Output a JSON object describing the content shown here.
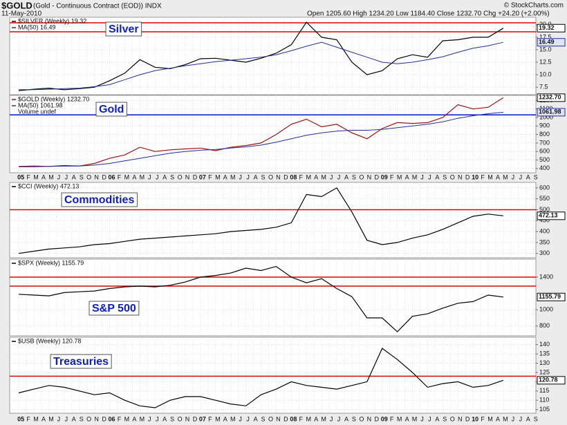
{
  "header": {
    "symbol": "$GOLD",
    "name": "(Gold - Continuous Contract (EOD)) INDX",
    "date": "11-May-2010",
    "quote": "Open 1205.60 High 1234.20 Low 1184.40 Close 1232.70 Chg +24.20 (+2.00%)",
    "credit": "© StockCharts.com"
  },
  "x_axis": {
    "xlim": [
      -1.2,
      68.3
    ],
    "xticks": [
      {
        "value": 0,
        "label": "05"
      },
      {
        "value": 1,
        "label": "F"
      },
      {
        "value": 2,
        "label": "M"
      },
      {
        "value": 3,
        "label": "A"
      },
      {
        "value": 4,
        "label": "M"
      },
      {
        "value": 5,
        "label": "J"
      },
      {
        "value": 6,
        "label": "J"
      },
      {
        "value": 7,
        "label": "A"
      },
      {
        "value": 8,
        "label": "S"
      },
      {
        "value": 9,
        "label": "O"
      },
      {
        "value": 10,
        "label": "N"
      },
      {
        "value": 11,
        "label": "D"
      },
      {
        "value": 12,
        "label": "06"
      },
      {
        "value": 13,
        "label": "F"
      },
      {
        "value": 14,
        "label": "M"
      },
      {
        "value": 15,
        "label": "A"
      },
      {
        "value": 16,
        "label": "M"
      },
      {
        "value": 17,
        "label": "J"
      },
      {
        "value": 18,
        "label": "J"
      },
      {
        "value": 19,
        "label": "A"
      },
      {
        "value": 20,
        "label": "S"
      },
      {
        "value": 21,
        "label": "O"
      },
      {
        "value": 22,
        "label": "N"
      },
      {
        "value": 23,
        "label": "D"
      },
      {
        "value": 24,
        "label": "07"
      },
      {
        "value": 25,
        "label": "F"
      },
      {
        "value": 26,
        "label": "M"
      },
      {
        "value": 27,
        "label": "A"
      },
      {
        "value": 28,
        "label": "M"
      },
      {
        "value": 29,
        "label": "J"
      },
      {
        "value": 30,
        "label": "J"
      },
      {
        "value": 31,
        "label": "A"
      },
      {
        "value": 32,
        "label": "S"
      },
      {
        "value": 33,
        "label": "O"
      },
      {
        "value": 34,
        "label": "N"
      },
      {
        "value": 35,
        "label": "D"
      },
      {
        "value": 36,
        "label": "08"
      },
      {
        "value": 37,
        "label": "F"
      },
      {
        "value": 38,
        "label": "M"
      },
      {
        "value": 39,
        "label": "A"
      },
      {
        "value": 40,
        "label": "M"
      },
      {
        "value": 41,
        "label": "J"
      },
      {
        "value": 42,
        "label": "J"
      },
      {
        "value": 43,
        "label": "A"
      },
      {
        "value": 44,
        "label": "S"
      },
      {
        "value": 45,
        "label": "O"
      },
      {
        "value": 46,
        "label": "N"
      },
      {
        "value": 47,
        "label": "D"
      },
      {
        "value": 48,
        "label": "09"
      },
      {
        "value": 49,
        "label": "F"
      },
      {
        "value": 50,
        "label": "M"
      },
      {
        "value": 51,
        "label": "A"
      },
      {
        "value": 52,
        "label": "M"
      },
      {
        "value": 53,
        "label": "J"
      },
      {
        "value": 54,
        "label": "J"
      },
      {
        "value": 55,
        "label": "A"
      },
      {
        "value": 56,
        "label": "S"
      },
      {
        "value": 57,
        "label": "O"
      },
      {
        "value": 58,
        "label": "N"
      },
      {
        "value": 59,
        "label": "D"
      },
      {
        "value": 60,
        "label": "10"
      },
      {
        "value": 61,
        "label": "F"
      },
      {
        "value": 62,
        "label": "M"
      },
      {
        "value": 63,
        "label": "A"
      },
      {
        "value": 64,
        "label": "M"
      },
      {
        "value": 65,
        "label": "J"
      },
      {
        "value": 66,
        "label": "J"
      },
      {
        "value": 67,
        "label": "A"
      },
      {
        "value": 68,
        "label": "S"
      }
    ]
  },
  "chart_data": [
    {
      "type": "line",
      "title": "Silver",
      "ylim": [
        6,
        21.5
      ],
      "yticks": [
        7.5,
        {
          "value": 10,
          "label": "10.0"
        },
        12.5,
        {
          "value": 15,
          "label": "15.0"
        },
        17.5,
        {
          "value": 20,
          "label": "20.0"
        }
      ],
      "x": [
        0,
        2,
        4,
        6,
        8,
        10,
        12,
        14,
        16,
        18,
        20,
        22,
        24,
        26,
        28,
        30,
        32,
        34,
        36,
        38,
        40,
        42,
        44,
        46,
        48,
        50,
        52,
        54,
        56,
        58,
        60,
        62,
        64
      ],
      "series": [
        {
          "name": "$SILVER (Weekly) 19.32",
          "color": "#000000",
          "values": [
            6.8,
            7.1,
            7.3,
            7.0,
            7.2,
            7.5,
            8.8,
            10.3,
            13.0,
            11.5,
            11.2,
            12.0,
            13.2,
            13.3,
            12.9,
            12.5,
            13.3,
            14.3,
            16.0,
            20.5,
            17.5,
            17.0,
            12.5,
            10.0,
            10.8,
            13.2,
            14.0,
            13.5,
            16.8,
            17.0,
            17.5,
            17.5,
            19.32
          ]
        },
        {
          "name": "MA(50) 16.49",
          "color": "#1f2f9f",
          "values": [
            7.0,
            7.0,
            7.1,
            7.2,
            7.3,
            7.6,
            8.0,
            9.0,
            10.0,
            10.8,
            11.3,
            11.8,
            12.2,
            12.6,
            12.9,
            13.2,
            13.5,
            14.0,
            14.8,
            15.7,
            16.5,
            15.5,
            14.5,
            13.5,
            12.5,
            12.2,
            12.5,
            13.0,
            13.6,
            14.5,
            15.3,
            15.8,
            16.49
          ]
        }
      ],
      "reference_lines": [
        {
          "value": 20.4,
          "color": "#e00000"
        },
        {
          "value": 18.6,
          "color": "#e00000"
        }
      ],
      "grid": true
    },
    {
      "type": "line",
      "title": "Gold",
      "note": "Volume undef",
      "ylim": [
        350,
        1260
      ],
      "yticks": [
        400,
        500,
        600,
        700,
        800,
        900,
        1000,
        1100,
        1200
      ],
      "x": [
        0,
        2,
        4,
        6,
        8,
        10,
        12,
        14,
        16,
        18,
        20,
        22,
        24,
        26,
        28,
        30,
        32,
        34,
        36,
        38,
        40,
        42,
        44,
        46,
        48,
        50,
        52,
        54,
        56,
        58,
        60,
        62,
        64
      ],
      "series": [
        {
          "name": "$GOLD (Weekly) 1232.70",
          "color": "#a01010",
          "values": [
            425,
            430,
            425,
            435,
            430,
            460,
            520,
            560,
            650,
            600,
            620,
            630,
            640,
            610,
            650,
            670,
            700,
            800,
            920,
            980,
            890,
            920,
            820,
            750,
            870,
            940,
            930,
            940,
            1000,
            1150,
            1100,
            1120,
            1232.7
          ],
          "value_labels": [
            null,
            null,
            null,
            null,
            null,
            null,
            null,
            null,
            null,
            null,
            null,
            null,
            null,
            null,
            null,
            null,
            null,
            null,
            null,
            null,
            null,
            null,
            null,
            null,
            null,
            null,
            null,
            null,
            null,
            null,
            null,
            null,
            "1232.70"
          ]
        },
        {
          "name": "MA(50) 1061.98",
          "color": "#1f2f9f",
          "values": [
            420,
            420,
            425,
            428,
            430,
            440,
            460,
            490,
            520,
            550,
            580,
            600,
            615,
            625,
            640,
            655,
            675,
            710,
            750,
            790,
            820,
            840,
            850,
            850,
            860,
            880,
            900,
            920,
            950,
            990,
            1020,
            1045,
            1061.98
          ]
        }
      ],
      "reference_lines": [
        {
          "value": 1030,
          "color": "#0010c0"
        }
      ],
      "grid": true
    },
    {
      "type": "line",
      "title": "Commodities",
      "ylim": [
        280,
        625
      ],
      "yticks": [
        300,
        350,
        400,
        450,
        500,
        550,
        600
      ],
      "x": [
        0,
        2,
        4,
        6,
        8,
        10,
        12,
        14,
        16,
        18,
        20,
        22,
        24,
        26,
        28,
        30,
        32,
        34,
        36,
        38,
        40,
        42,
        44,
        46,
        48,
        50,
        52,
        54,
        56,
        58,
        60,
        62,
        64
      ],
      "series": [
        {
          "name": "$CCI (Weekly) 472.13",
          "color": "#000000",
          "values": [
            300,
            310,
            320,
            325,
            330,
            340,
            345,
            355,
            365,
            370,
            375,
            380,
            385,
            390,
            400,
            405,
            410,
            420,
            440,
            570,
            560,
            600,
            490,
            360,
            340,
            350,
            370,
            385,
            410,
            440,
            470,
            480,
            472.13
          ]
        }
      ],
      "reference_lines": [
        {
          "value": 500,
          "color": "#e00000"
        }
      ],
      "grid": true
    },
    {
      "type": "line",
      "title": "S&P 500",
      "ylim": [
        680,
        1620
      ],
      "yticks": [
        800,
        1000,
        1400
      ],
      "x": [
        0,
        2,
        4,
        6,
        8,
        10,
        12,
        14,
        16,
        18,
        20,
        22,
        24,
        26,
        28,
        30,
        32,
        34,
        36,
        38,
        40,
        42,
        44,
        46,
        48,
        50,
        52,
        54,
        56,
        58,
        60,
        62,
        64
      ],
      "series": [
        {
          "name": "$SPX (Weekly) 1155.79",
          "color": "#000000",
          "values": [
            1190,
            1180,
            1170,
            1210,
            1220,
            1230,
            1260,
            1280,
            1290,
            1280,
            1300,
            1340,
            1400,
            1420,
            1450,
            1510,
            1480,
            1530,
            1400,
            1330,
            1380,
            1260,
            1160,
            900,
            900,
            730,
            920,
            950,
            1020,
            1080,
            1100,
            1180,
            1155.79
          ]
        }
      ],
      "reference_lines": [
        {
          "value": 1400,
          "color": "#e00000"
        },
        {
          "value": 1290,
          "color": "#e00000"
        }
      ],
      "grid": true
    },
    {
      "type": "line",
      "title": "Treasuries",
      "ylim": [
        103,
        144
      ],
      "yticks": [
        105,
        110,
        115,
        120,
        125,
        130,
        135,
        140
      ],
      "x": [
        0,
        2,
        4,
        6,
        8,
        10,
        12,
        14,
        16,
        18,
        20,
        22,
        24,
        26,
        28,
        30,
        32,
        34,
        36,
        38,
        40,
        42,
        44,
        46,
        48,
        50,
        52,
        54,
        56,
        58,
        60,
        62,
        64
      ],
      "series": [
        {
          "name": "$USB (Weekly) 120.78",
          "color": "#000000",
          "values": [
            114,
            116,
            118,
            117,
            115,
            113,
            114,
            110,
            107,
            106,
            110,
            112,
            112,
            110,
            108,
            107,
            113,
            116,
            120,
            118,
            117,
            116,
            118,
            120,
            138,
            132,
            125,
            117,
            119,
            120,
            117,
            118,
            120.78
          ]
        }
      ],
      "reference_lines": [
        {
          "value": 123,
          "color": "#e00000"
        }
      ],
      "grid": true
    }
  ]
}
